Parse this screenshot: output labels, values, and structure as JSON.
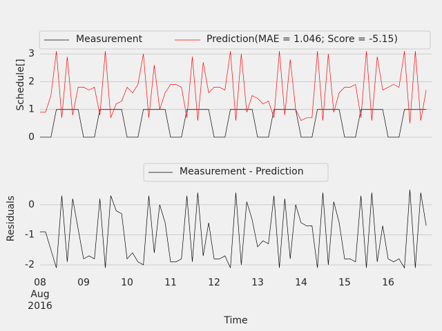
{
  "chart_data": [
    {
      "type": "line",
      "ylabel": "Schedule[]",
      "legend": "top",
      "x": [
        8,
        8.125,
        8.25,
        8.375,
        8.5,
        8.625,
        8.75,
        8.875,
        9,
        9.125,
        9.25,
        9.375,
        9.5,
        9.625,
        9.75,
        9.875,
        10,
        10.125,
        10.25,
        10.375,
        10.5,
        10.625,
        10.75,
        10.875,
        11,
        11.125,
        11.25,
        11.375,
        11.5,
        11.625,
        11.75,
        11.875,
        12,
        12.125,
        12.25,
        12.375,
        12.5,
        12.625,
        12.75,
        12.875,
        13,
        13.125,
        13.25,
        13.375,
        13.5,
        13.625,
        13.75,
        13.875,
        14,
        14.125,
        14.25,
        14.375,
        14.5,
        14.625,
        14.75,
        14.875,
        15,
        15.125,
        15.25,
        15.375,
        15.5,
        15.625,
        15.75,
        15.875,
        16,
        16.125,
        16.25,
        16.375,
        16.5,
        16.625,
        16.75,
        16.875
      ],
      "xlim": [
        8,
        17
      ],
      "ylim": [
        -0.15,
        3.9
      ],
      "yticks": [
        0,
        1,
        2,
        3
      ],
      "grid": true,
      "series": [
        {
          "name": "Measurement",
          "color": "#000000",
          "values": [
            0,
            0,
            0,
            1,
            1,
            1,
            1,
            1,
            0,
            0,
            0,
            1,
            1,
            1,
            1,
            1,
            0,
            0,
            0,
            1,
            1,
            1,
            1,
            1,
            0,
            0,
            0,
            1,
            1,
            1,
            1,
            1,
            0,
            0,
            0,
            1,
            1,
            1,
            1,
            1,
            0,
            0,
            0,
            1,
            1,
            1,
            1,
            1,
            0,
            0,
            0,
            1,
            1,
            1,
            1,
            1,
            0,
            0,
            0,
            1,
            1,
            1,
            1,
            1,
            0,
            0,
            0,
            1,
            1,
            1,
            1,
            1
          ]
        },
        {
          "name": "Prediction(MAE = 1.046; Score = -5.15)",
          "color": "#ff0000",
          "values": [
            0.9,
            0.9,
            1.5,
            3.1,
            0.7,
            2.9,
            0.8,
            1.8,
            1.8,
            1.7,
            1.8,
            0.8,
            3.1,
            0.7,
            1.2,
            1.3,
            1.8,
            1.6,
            1.9,
            3.0,
            0.7,
            2.6,
            1.0,
            1.6,
            1.9,
            1.9,
            1.8,
            0.7,
            2.9,
            0.6,
            2.7,
            1.6,
            1.8,
            1.8,
            1.7,
            3.1,
            0.6,
            3.0,
            0.9,
            1.5,
            1.4,
            1.2,
            1.3,
            0.7,
            3.1,
            0.8,
            2.8,
            1.0,
            0.6,
            0.7,
            0.7,
            3.1,
            0.6,
            3.0,
            0.9,
            1.6,
            1.8,
            1.8,
            1.9,
            0.7,
            3.1,
            0.6,
            2.9,
            1.7,
            1.8,
            1.9,
            1.8,
            3.1,
            0.5,
            3.1,
            0.6,
            1.7
          ]
        }
      ]
    },
    {
      "type": "line",
      "ylabel": "Residuals",
      "xlabel": "Time",
      "legend": "top",
      "x": [
        8,
        8.125,
        8.25,
        8.375,
        8.5,
        8.625,
        8.75,
        8.875,
        9,
        9.125,
        9.25,
        9.375,
        9.5,
        9.625,
        9.75,
        9.875,
        10,
        10.125,
        10.25,
        10.375,
        10.5,
        10.625,
        10.75,
        10.875,
        11,
        11.125,
        11.25,
        11.375,
        11.5,
        11.625,
        11.75,
        11.875,
        12,
        12.125,
        12.25,
        12.375,
        12.5,
        12.625,
        12.75,
        12.875,
        13,
        13.125,
        13.25,
        13.375,
        13.5,
        13.625,
        13.75,
        13.875,
        14,
        14.125,
        14.25,
        14.375,
        14.5,
        14.625,
        14.75,
        14.875,
        15,
        15.125,
        15.25,
        15.375,
        15.5,
        15.625,
        15.75,
        15.875,
        16,
        16.125,
        16.25,
        16.375,
        16.5,
        16.625,
        16.75,
        16.875
      ],
      "xlim": [
        8,
        17
      ],
      "xticks": [
        {
          "value": 8,
          "label": "08\nAug\n2016"
        },
        {
          "value": 9,
          "label": "09"
        },
        {
          "value": 10,
          "label": "10"
        },
        {
          "value": 11,
          "label": "11"
        },
        {
          "value": 12,
          "label": "12"
        },
        {
          "value": 13,
          "label": "13"
        },
        {
          "value": 14,
          "label": "14"
        },
        {
          "value": 15,
          "label": "15"
        },
        {
          "value": 16,
          "label": "16"
        }
      ],
      "ylim": [
        -2.25,
        1.35
      ],
      "yticks": [
        0,
        -1,
        -2
      ],
      "grid": true,
      "series": [
        {
          "name": "Measurement - Prediction",
          "color": "#000000",
          "values": [
            -0.9,
            -0.9,
            -1.5,
            -2.1,
            0.3,
            -1.9,
            0.2,
            -0.8,
            -1.8,
            -1.7,
            -1.8,
            0.2,
            -2.1,
            0.3,
            -0.2,
            -0.3,
            -1.8,
            -1.6,
            -1.9,
            -2.0,
            0.3,
            -1.6,
            0.0,
            -0.6,
            -1.9,
            -1.9,
            -1.8,
            0.3,
            -1.9,
            0.4,
            -1.7,
            -0.6,
            -1.8,
            -1.8,
            -1.7,
            -2.1,
            0.4,
            -2.0,
            0.1,
            -0.5,
            -1.4,
            -1.2,
            -1.3,
            0.3,
            -2.1,
            0.2,
            -1.8,
            0.0,
            -0.6,
            -0.7,
            -0.7,
            -2.1,
            0.4,
            -2.0,
            0.1,
            -0.6,
            -1.8,
            -1.8,
            -1.9,
            0.3,
            -2.1,
            0.4,
            -1.9,
            -0.7,
            -1.8,
            -1.9,
            -1.8,
            -2.1,
            0.5,
            -2.1,
            0.4,
            -0.7
          ]
        }
      ]
    }
  ]
}
